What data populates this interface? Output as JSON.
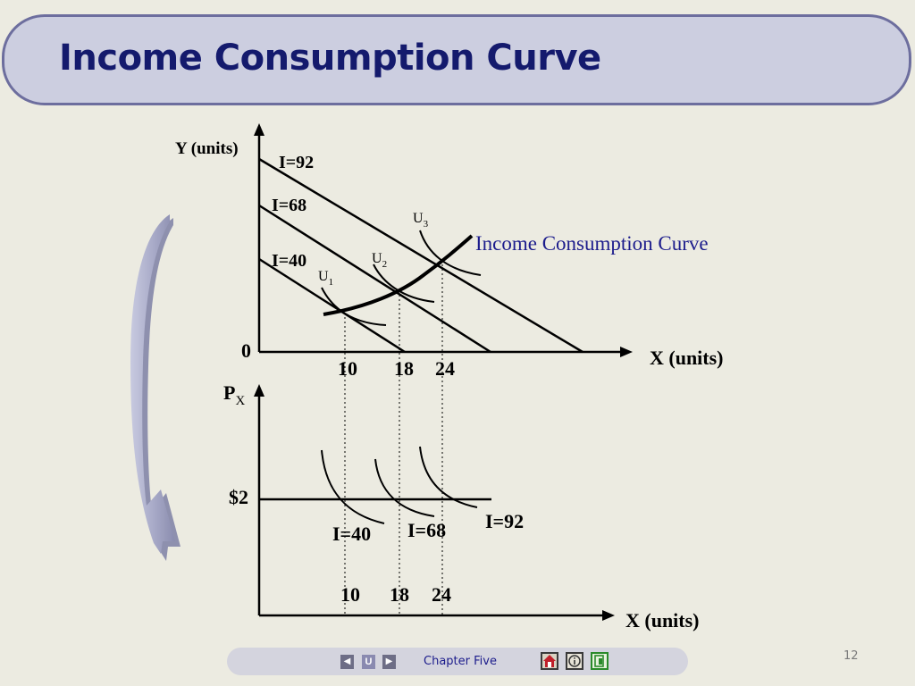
{
  "slide": {
    "title": "Income Consumption Curve",
    "page_number": "12"
  },
  "footer": {
    "chapter_label": "Chapter Five",
    "nav_prev_icon": "triangle-left-icon",
    "nav_mid_label": "U",
    "nav_next_icon": "triangle-right-icon",
    "home_icon": "home-icon",
    "info_icon": "info-icon",
    "exit_icon": "exit-icon"
  },
  "colors": {
    "background": "#ecebe1",
    "title_fill": "#cccee0",
    "title_border": "#6d6e9e",
    "title_text": "#141a6d",
    "icc_label": "#1c1c8c",
    "arrow_fill": "#a6a8c6"
  },
  "top_graph": {
    "y_axis_label": "Y (units)",
    "x_axis_label": "X (units)",
    "origin_label": "0",
    "budget_lines": [
      "I=92",
      "I=68",
      "I=40"
    ],
    "indifference_curves": [
      {
        "label": "U",
        "sub": "3"
      },
      {
        "label": "U",
        "sub": "2"
      },
      {
        "label": "U",
        "sub": "1"
      }
    ],
    "icc_label": "Income Consumption Curve",
    "x_ticks": [
      "10",
      "18",
      "24"
    ]
  },
  "bottom_graph": {
    "y_axis_label": "P",
    "y_axis_sub": "X",
    "x_axis_label": "X (units)",
    "price_label": "$2",
    "demand_curves": [
      "I=40",
      "I=68",
      "I=92"
    ],
    "x_ticks": [
      "10",
      "18",
      "24"
    ]
  }
}
